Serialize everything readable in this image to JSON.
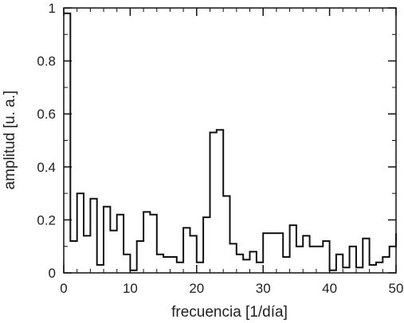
{
  "chart_data": {
    "type": "line",
    "step": true,
    "title": "",
    "xlabel": "frecuencia [1/día]",
    "ylabel": "amplitud [u. a.]",
    "xlim": [
      0,
      50
    ],
    "ylim": [
      0,
      1
    ],
    "xticks": [
      0,
      10,
      20,
      30,
      40,
      50
    ],
    "yticks": [
      0,
      0.2,
      0.4,
      0.6,
      0.8,
      1
    ],
    "ytick_labels": [
      "0",
      "0.2",
      "0.4",
      "0.6",
      "0.8",
      "1"
    ],
    "grid": false,
    "series": [
      {
        "x": [
          0,
          1,
          2,
          3,
          4,
          5,
          6,
          7,
          8,
          9,
          10,
          11,
          12,
          13,
          14,
          15,
          16,
          17,
          18,
          19,
          20,
          21,
          22,
          23,
          24,
          25,
          26,
          27,
          28,
          29,
          30,
          31,
          32,
          33,
          34,
          35,
          36,
          37,
          38,
          39,
          40,
          41,
          42,
          43,
          44,
          45,
          46,
          47,
          48,
          49,
          50
        ],
        "y": [
          0.98,
          0.12,
          0.3,
          0.14,
          0.28,
          0.03,
          0.25,
          0.16,
          0.22,
          0.07,
          0.01,
          0.12,
          0.23,
          0.22,
          0.07,
          0.06,
          0.06,
          0.04,
          0.17,
          0.14,
          0.04,
          0.21,
          0.53,
          0.54,
          0.29,
          0.11,
          0.07,
          0.05,
          0.08,
          0.04,
          0.15,
          0.15,
          0.15,
          0.06,
          0.18,
          0.1,
          0.14,
          0.1,
          0.1,
          0.12,
          0.01,
          0.07,
          0.02,
          0.1,
          0.02,
          0.13,
          0.03,
          0.04,
          0.06,
          0.1,
          0.15
        ]
      }
    ]
  }
}
